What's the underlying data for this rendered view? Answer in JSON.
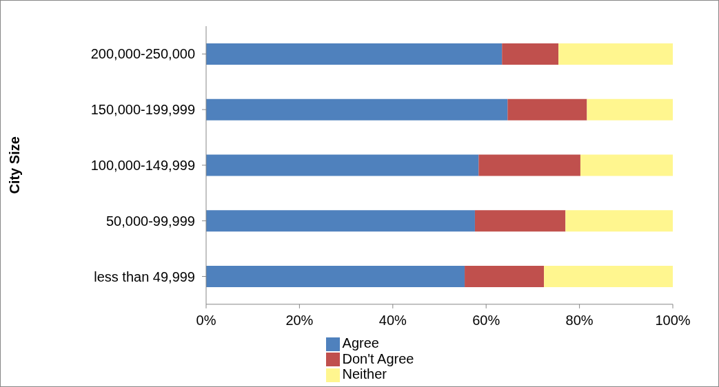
{
  "chart_data": {
    "type": "bar",
    "orientation": "horizontal",
    "stacked": true,
    "ylabel": "City Size",
    "categories": [
      "200,000-250,000",
      "150,000-199,999",
      "100,000-149,999",
      "50,000-99,999",
      "less than 49,999"
    ],
    "series": [
      {
        "name": "Agree",
        "color": "#4f81bd",
        "values": [
          63.4,
          64.6,
          58.4,
          57.6,
          55.4
        ]
      },
      {
        "name": "Don't Agree",
        "color": "#c0504d",
        "values": [
          12.1,
          17.0,
          21.8,
          19.4,
          17.0
        ]
      },
      {
        "name": "Neither",
        "color": "#fff68f",
        "values": [
          24.5,
          18.4,
          19.8,
          23.0,
          27.6
        ]
      }
    ],
    "xlim": [
      0,
      100
    ],
    "xticks": [
      {
        "value": 0,
        "label": "0%"
      },
      {
        "value": 20,
        "label": "20%"
      },
      {
        "value": 40,
        "label": "40%"
      },
      {
        "value": 60,
        "label": "60%"
      },
      {
        "value": 80,
        "label": "80%"
      },
      {
        "value": 100,
        "label": "100%"
      }
    ],
    "grid": false,
    "legend": "bottom"
  }
}
